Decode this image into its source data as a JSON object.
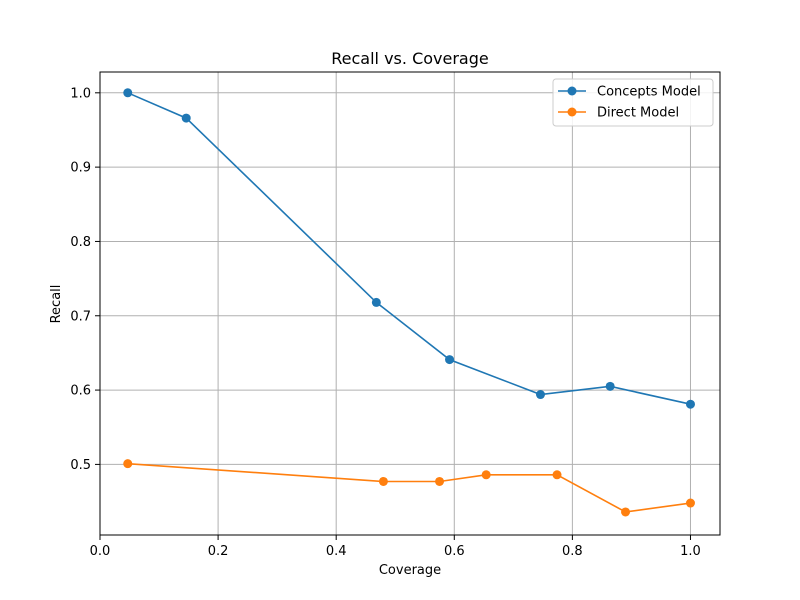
{
  "chart_data": {
    "type": "line",
    "title": "Recall vs. Coverage",
    "xlabel": "Coverage",
    "ylabel": "Recall",
    "xlim": [
      0.0,
      1.05
    ],
    "ylim": [
      0.405,
      1.028
    ],
    "xticks": [
      "0.0",
      "0.2",
      "0.4",
      "0.6",
      "0.8",
      "1.0"
    ],
    "yticks": [
      "0.5",
      "0.6",
      "0.7",
      "0.8",
      "0.9",
      "1.0"
    ],
    "grid": true,
    "legend_position": "top-right",
    "series": [
      {
        "name": "Concepts Model",
        "color": "#1f77b4",
        "marker": "circle",
        "x": [
          0.047,
          0.146,
          0.468,
          0.592,
          0.746,
          0.864,
          1.0
        ],
        "y": [
          1.0,
          0.966,
          0.718,
          0.641,
          0.594,
          0.605,
          0.581
        ]
      },
      {
        "name": "Direct Model",
        "color": "#ff7f0e",
        "marker": "circle",
        "x": [
          0.047,
          0.48,
          0.575,
          0.654,
          0.774,
          0.89,
          1.0
        ],
        "y": [
          0.501,
          0.477,
          0.477,
          0.486,
          0.486,
          0.436,
          0.448
        ]
      }
    ]
  }
}
